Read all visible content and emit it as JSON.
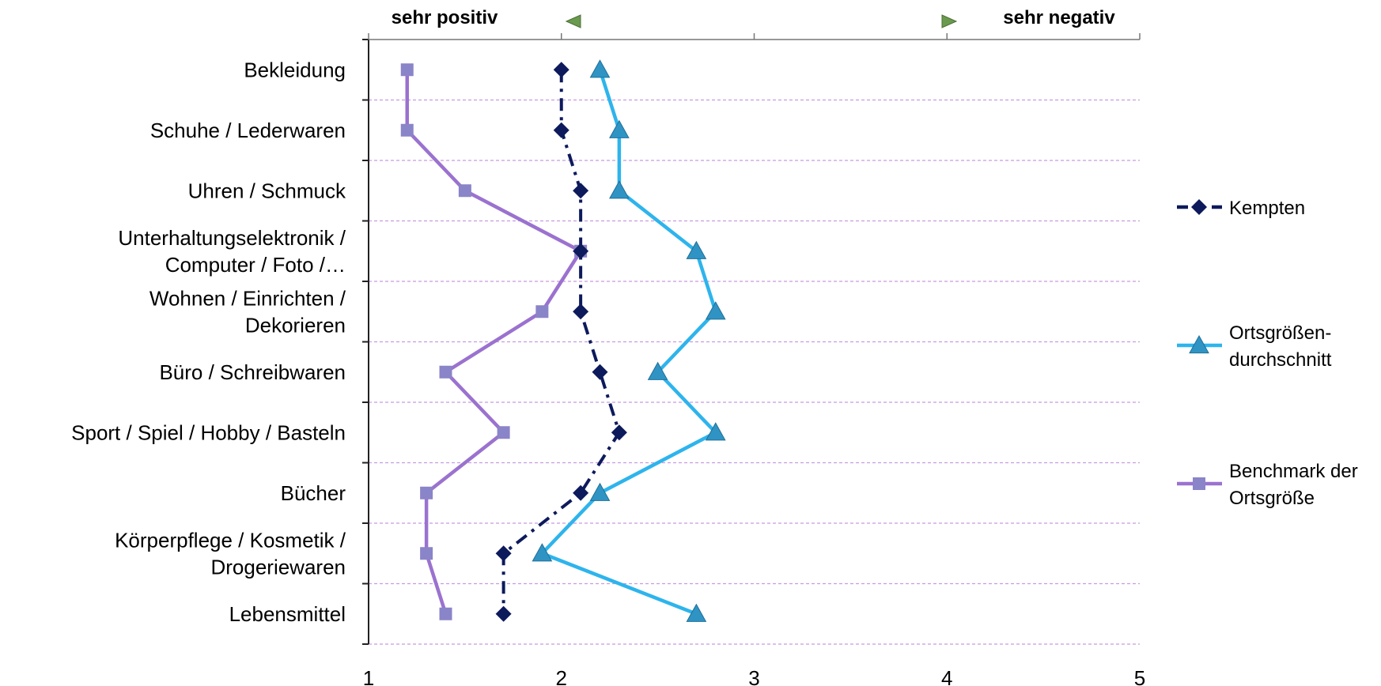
{
  "chart_data": {
    "type": "line",
    "title": "",
    "xlabel": "",
    "ylabel": "",
    "xlim": [
      1,
      5
    ],
    "x_ticks": [
      "1",
      "2",
      "3",
      "4",
      "5"
    ],
    "scale_labels": {
      "left": "sehr positiv",
      "right": "sehr negativ"
    },
    "categories": [
      [
        "Bekleidung"
      ],
      [
        "Schuhe / Lederwaren"
      ],
      [
        "Uhren / Schmuck"
      ],
      [
        "Unterhaltungselektronik /",
        "Computer / Foto /…"
      ],
      [
        "Wohnen / Einrichten /",
        "Dekorieren"
      ],
      [
        "Büro / Schreibwaren"
      ],
      [
        "Sport / Spiel / Hobby / Basteln"
      ],
      [
        "Bücher"
      ],
      [
        "Körperpflege / Kosmetik /",
        "Drogeriewaren"
      ],
      [
        "Lebensmittel"
      ]
    ],
    "series": [
      {
        "name": [
          "Kempten"
        ],
        "color": "#0d1a5c",
        "marker": "diamond",
        "dash": "dashdot",
        "values": [
          2.0,
          2.0,
          2.1,
          2.1,
          2.1,
          2.2,
          2.3,
          2.1,
          1.7,
          1.7
        ]
      },
      {
        "name": [
          "Ortsgrößen-",
          "durchschnitt"
        ],
        "color": "#2eb4ec",
        "marker_color": "#2f94c4",
        "marker": "triangle",
        "dash": "solid",
        "values": [
          2.2,
          2.3,
          2.3,
          2.7,
          2.8,
          2.5,
          2.8,
          2.2,
          1.9,
          2.7
        ]
      },
      {
        "name": [
          "Benchmark der",
          "Ortsgröße"
        ],
        "color": "#9b72cf",
        "marker_color": "#8a84c8",
        "marker": "square",
        "dash": "solid",
        "values": [
          1.2,
          1.2,
          1.5,
          2.1,
          1.9,
          1.4,
          1.7,
          1.3,
          1.3,
          1.4
        ]
      }
    ],
    "grid": true,
    "grid_color": "#c79be0",
    "arrow_color": "#6a9a4e",
    "legend_position": "right"
  }
}
